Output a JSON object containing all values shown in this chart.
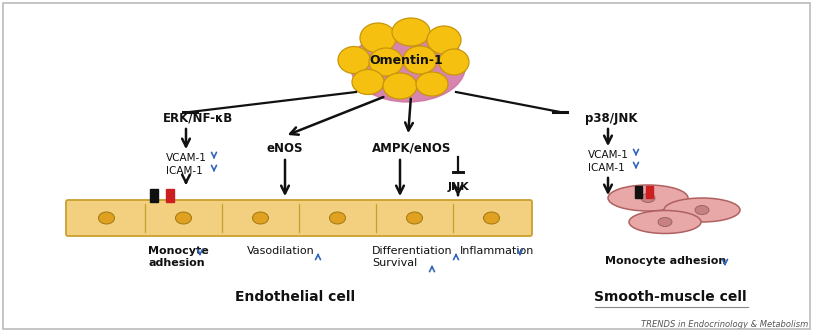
{
  "background_color": "#ffffff",
  "border_color": "#bbbbbb",
  "omentin_label": "Omentin-1",
  "omentin_color": "#f5c010",
  "omentin_outline": "#c8960a",
  "omentin_pink": "#d070a0",
  "endothelial_label": "Endothelial cell",
  "smooth_muscle_label": "Smooth-muscle cell",
  "journal_label": "TRENDS in Endocrinology & Metabolism",
  "erk_label": "ERK/NF-κB",
  "enos_label": "eNOS",
  "ampk_label": "AMPK/eNOS",
  "jnk_label": "JNK",
  "p38_label": "p38/JNK",
  "vcam_label": "VCAM-1",
  "icam_label": "ICAM-1",
  "monocyte_endo": "Monocyte\nadhesion",
  "vasodilation": "Vasodilation",
  "differentiation": "Differentiation",
  "survival": "Survival",
  "inflammation": "Inflammation",
  "monocyte_smooth": "Monocyte adhesion",
  "arrow_color": "#111111",
  "blue_color": "#3366bb",
  "cell_fill": "#f2d080",
  "cell_border": "#c8a030",
  "cell_nucleus": "#e0a020",
  "smooth_fill": "#e8a8a8",
  "smooth_border": "#b06060",
  "smooth_nucleus": "#c88080",
  "black_marker": "#111111",
  "red_marker": "#cc2020"
}
